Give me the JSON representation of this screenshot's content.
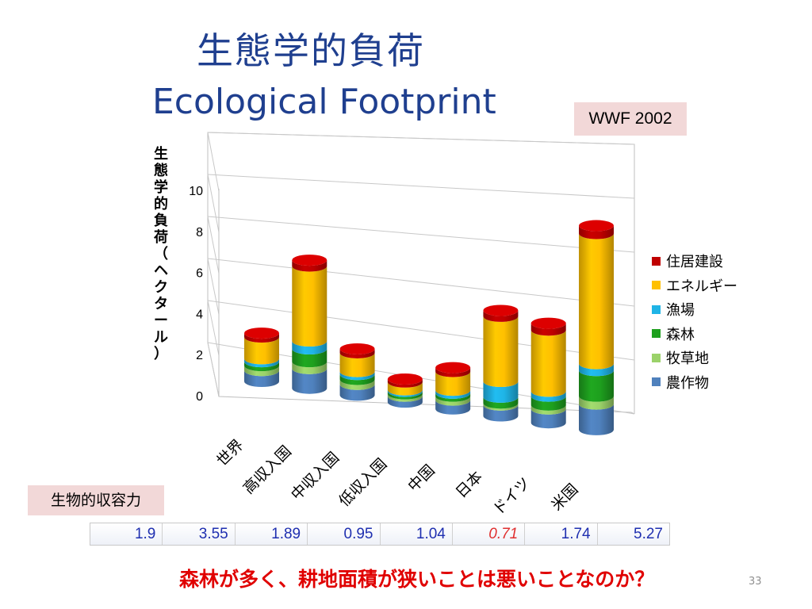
{
  "slide": {
    "title_jp": "生態学的負荷",
    "title_en": "Ecological Footprint",
    "source": "WWF 2002",
    "ylabel_chars": [
      "生",
      "態",
      "学",
      "的",
      "負",
      "荷",
      "（",
      "ヘ",
      "ク",
      "タ",
      "ー",
      "ル",
      "）"
    ],
    "biocapacity_label": "生物的収容力",
    "biocapacity_values": [
      "1.9",
      "3.55",
      "1.89",
      "0.95",
      "1.04",
      "0.71",
      "1.74",
      "5.27"
    ],
    "question": "森林が多く、耕地面積が狭いことは悪いことなのか？",
    "page_number": "33"
  },
  "chart_data": {
    "type": "bar",
    "stacked": true,
    "categories": [
      "世界",
      "高収入国",
      "中収入国",
      "低収入国",
      "中国",
      "日本",
      "ドイツ",
      "米国"
    ],
    "ylabel": "生態学的負荷（ヘクタール）",
    "ylim": [
      0,
      10
    ],
    "yticks": [
      "0",
      "2",
      "4",
      "6",
      "8",
      "10"
    ],
    "legend_position": "right",
    "series": [
      {
        "name": "農作物",
        "color": "#4f81bd",
        "values": [
          0.55,
          1.0,
          0.55,
          0.3,
          0.45,
          0.55,
          0.7,
          1.3
        ]
      },
      {
        "name": "牧草地",
        "color": "#9bd26a",
        "values": [
          0.25,
          0.35,
          0.25,
          0.12,
          0.2,
          0.1,
          0.2,
          0.4
        ]
      },
      {
        "name": "森林",
        "color": "#1ea01e",
        "values": [
          0.2,
          0.65,
          0.25,
          0.12,
          0.15,
          0.3,
          0.45,
          1.3
        ]
      },
      {
        "name": "漁場",
        "color": "#1fb4e6",
        "values": [
          0.15,
          0.4,
          0.15,
          0.08,
          0.15,
          0.8,
          0.25,
          0.35
        ]
      },
      {
        "name": "エネルギー",
        "color": "#ffc000",
        "values": [
          1.1,
          3.8,
          0.95,
          0.4,
          0.95,
          3.3,
          3.1,
          6.6
        ]
      },
      {
        "name": "住居建設",
        "color": "#c00000",
        "values": [
          0.2,
          0.3,
          0.2,
          0.15,
          0.2,
          0.3,
          0.35,
          0.4
        ]
      }
    ]
  }
}
